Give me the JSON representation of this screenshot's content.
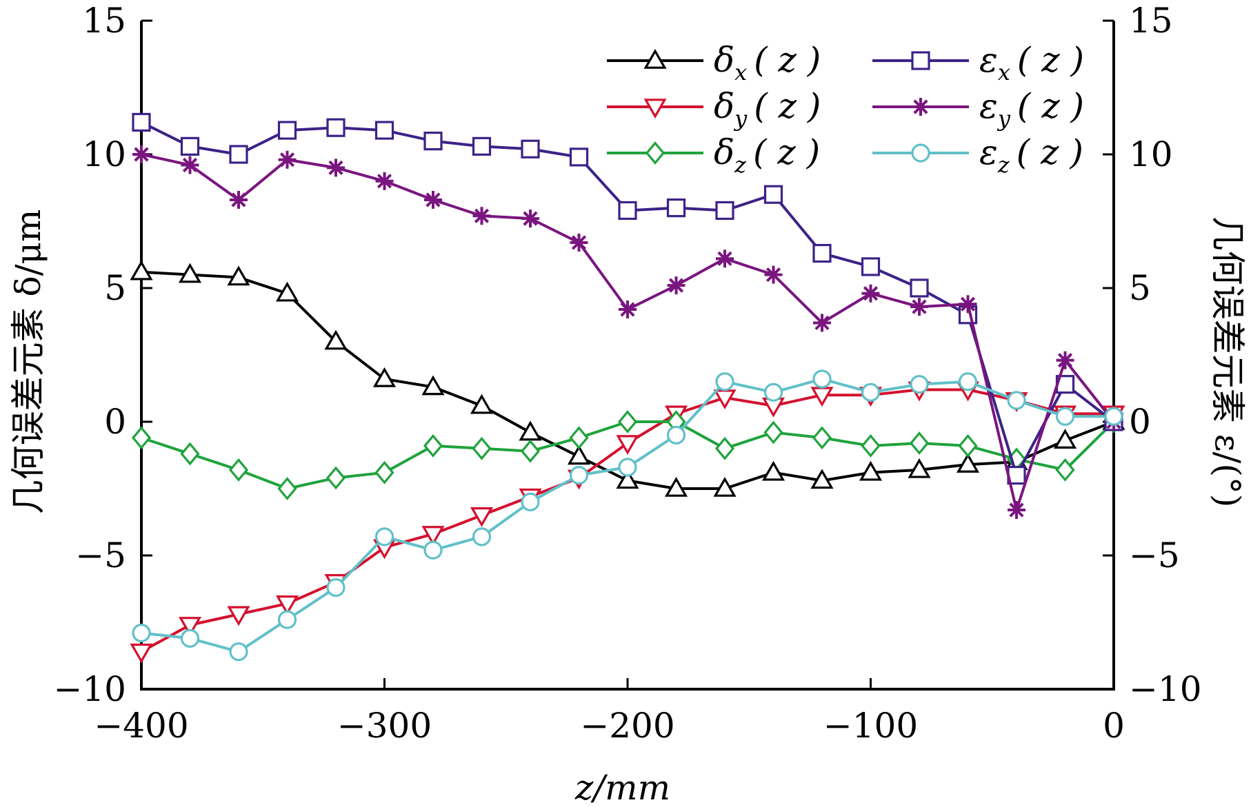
{
  "chart_data": {
    "type": "line",
    "xlabel": "z/mm",
    "ylabel_left": "几何误差元素 δ/μm",
    "ylabel_right": "几何误差元素 ε/(°)",
    "xlim": [
      -400,
      0
    ],
    "ylim": [
      -10,
      15
    ],
    "y2lim": [
      -10,
      15
    ],
    "xticks": [
      "−400",
      "−300",
      "−200",
      "−100",
      "0"
    ],
    "yticks": [
      "−10",
      "−5",
      "0",
      "5",
      "10",
      "15"
    ],
    "x": [
      -400,
      -380,
      -360,
      -340,
      -320,
      -300,
      -280,
      -260,
      -240,
      -220,
      -200,
      -180,
      -160,
      -140,
      -120,
      -100,
      -80,
      -60,
      -40,
      -20,
      0
    ],
    "grid": false,
    "legend_position": "top-right",
    "series": [
      {
        "name": "δx(z)",
        "axis": "left",
        "marker": "triangle-up",
        "color": "#000000",
        "values": [
          5.6,
          5.5,
          5.4,
          4.8,
          3.0,
          1.6,
          1.3,
          0.6,
          -0.4,
          -1.3,
          -2.2,
          -2.5,
          -2.5,
          -1.9,
          -2.2,
          -1.9,
          -1.8,
          -1.6,
          -1.5,
          -0.7,
          0.0
        ]
      },
      {
        "name": "δy(z)",
        "axis": "left",
        "marker": "triangle-down",
        "color": "#d4102e",
        "values": [
          -8.6,
          -7.6,
          -7.2,
          -6.8,
          -6.0,
          -4.7,
          -4.2,
          -3.5,
          -2.8,
          -2.1,
          -0.8,
          0.3,
          0.9,
          0.6,
          1.0,
          1.0,
          1.2,
          1.2,
          0.8,
          0.3,
          0.3
        ]
      },
      {
        "name": "δz(z)",
        "axis": "left",
        "marker": "diamond",
        "color": "#1fa33c",
        "values": [
          -0.6,
          -1.2,
          -1.8,
          -2.5,
          -2.1,
          -1.9,
          -0.9,
          -1.0,
          -1.1,
          -0.6,
          0.0,
          0.0,
          -1.0,
          -0.4,
          -0.6,
          -0.9,
          -0.8,
          -0.9,
          -1.4,
          -1.8,
          0.0
        ]
      },
      {
        "name": "εx(z)",
        "axis": "right",
        "marker": "square",
        "color": "#3d2288",
        "values": [
          11.2,
          10.3,
          10.0,
          10.9,
          11.0,
          10.9,
          10.5,
          10.3,
          10.2,
          9.9,
          7.9,
          8.0,
          7.9,
          8.5,
          6.3,
          5.8,
          5.0,
          4.0,
          -2.0,
          1.4,
          0.0
        ]
      },
      {
        "name": "εy(z)",
        "axis": "right",
        "marker": "asterisk",
        "color": "#7a157f",
        "values": [
          10.0,
          9.6,
          8.3,
          9.8,
          9.5,
          9.0,
          8.3,
          7.7,
          7.6,
          6.7,
          4.2,
          5.1,
          6.1,
          5.5,
          3.7,
          4.8,
          4.3,
          4.4,
          -3.3,
          2.3,
          0.0
        ]
      },
      {
        "name": "εz(z)",
        "axis": "right",
        "marker": "circle",
        "color": "#61c0c9",
        "values": [
          -7.9,
          -8.1,
          -8.6,
          -7.4,
          -6.2,
          -4.3,
          -4.8,
          -4.3,
          -3.0,
          -2.0,
          -1.7,
          -0.5,
          1.5,
          1.1,
          1.6,
          1.1,
          1.4,
          1.5,
          0.8,
          0.2,
          0.2
        ]
      }
    ],
    "legend": [
      {
        "label": "δx(z)",
        "symbol": "δ",
        "sub": "x",
        "arg": "( z )",
        "series": 0
      },
      {
        "label": "εx(z)",
        "symbol": "ε",
        "sub": "x",
        "arg": "( z )",
        "series": 3
      },
      {
        "label": "δy(z)",
        "symbol": "δ",
        "sub": "y",
        "arg": "( z )",
        "series": 1
      },
      {
        "label": "εy(z)",
        "symbol": "ε",
        "sub": "y",
        "arg": "( z )",
        "series": 4
      },
      {
        "label": "δz(z)",
        "symbol": "δ",
        "sub": "z",
        "arg": "( z )",
        "series": 2
      },
      {
        "label": "εz(z)",
        "symbol": "ε",
        "sub": "z",
        "arg": "( z )",
        "series": 5
      }
    ]
  }
}
